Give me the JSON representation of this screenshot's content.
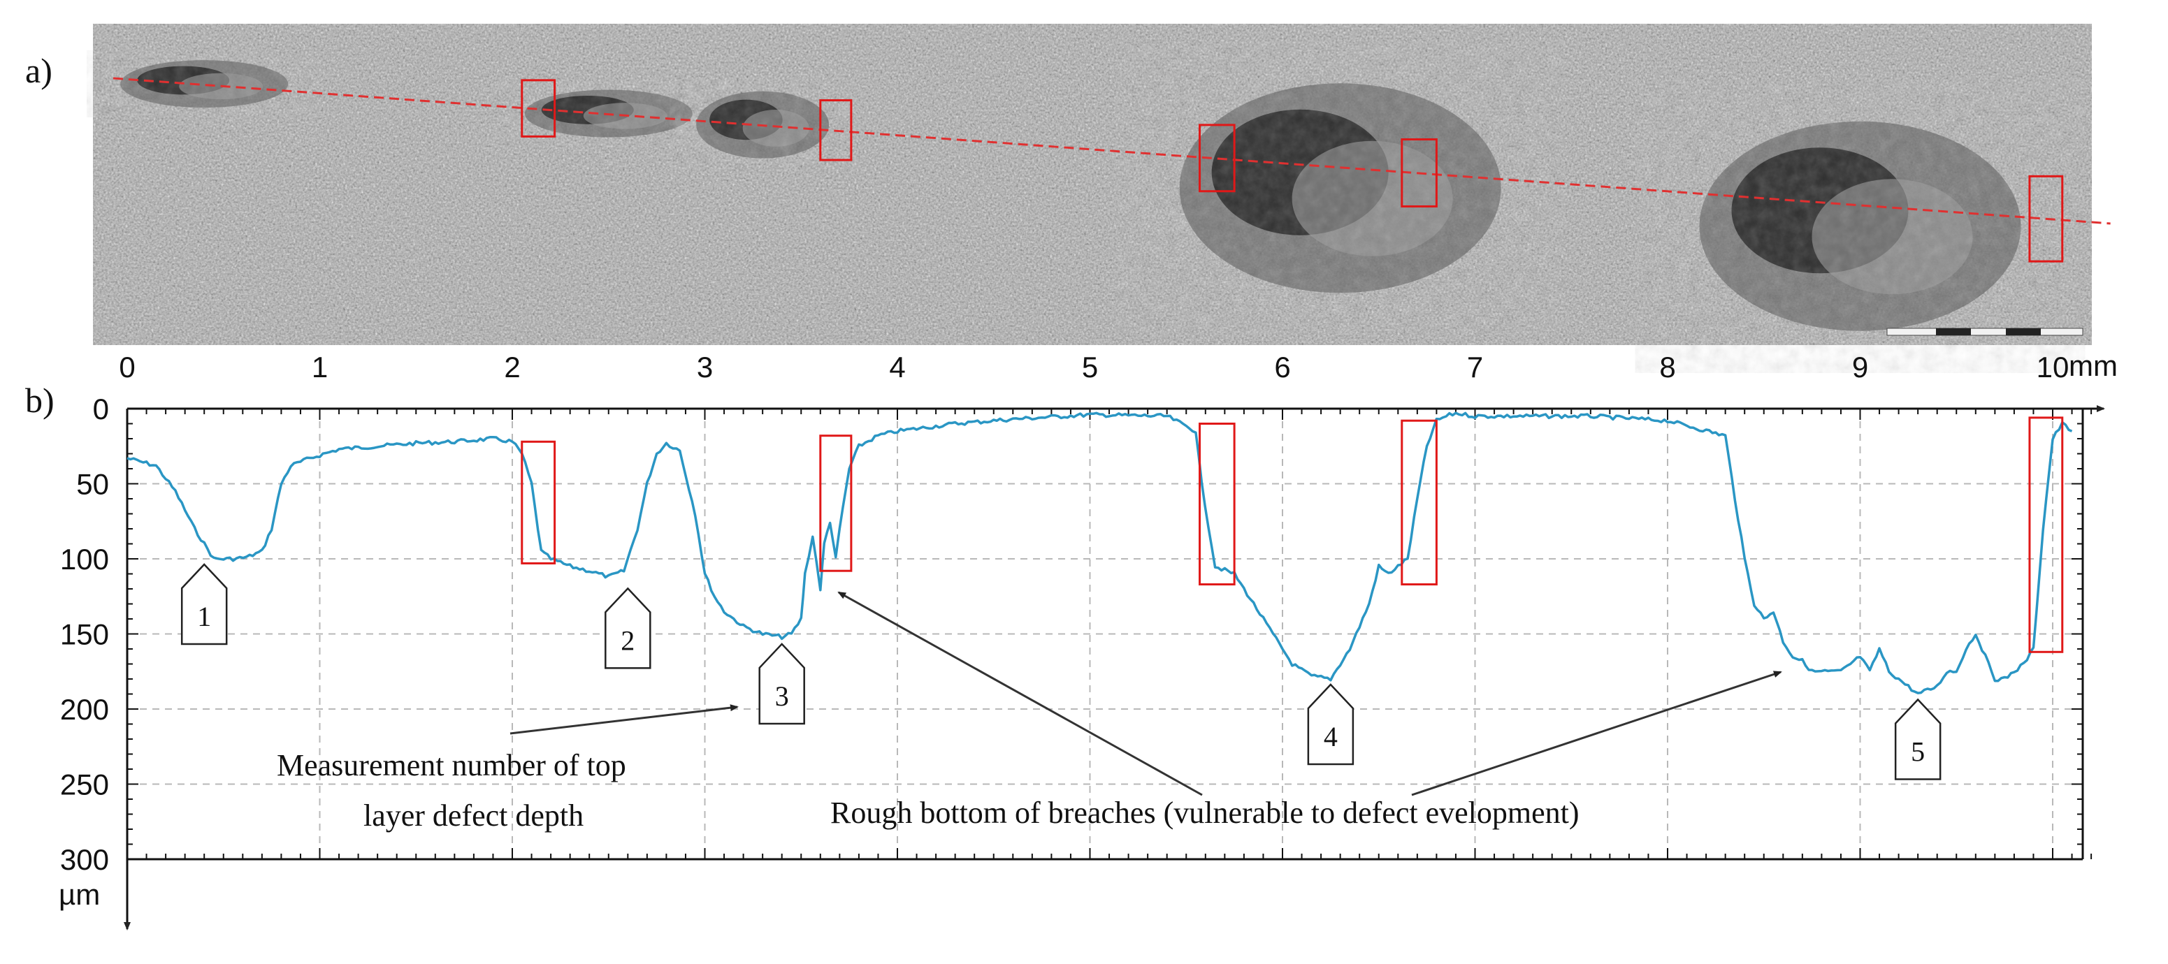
{
  "panels": {
    "a": "a)",
    "b": "b)"
  },
  "chart_data": {
    "type": "line",
    "x_unit": "mm",
    "y_unit": "µm",
    "xlim": [
      0,
      10.3
    ],
    "ylim": [
      300,
      0
    ],
    "y_inverted": true,
    "grid": true,
    "x_ticks": [
      "0",
      "1",
      "2",
      "3",
      "4",
      "5",
      "6",
      "7",
      "8",
      "9",
      "10"
    ],
    "y_ticks": [
      "0",
      "50",
      "100",
      "150",
      "200",
      "250",
      "300"
    ],
    "series": [
      {
        "color": "#2a96c4",
        "x": [
          0.0,
          0.15,
          0.25,
          0.35,
          0.45,
          0.55,
          0.62,
          0.7,
          0.75,
          0.8,
          0.85,
          0.95,
          1.1,
          1.3,
          1.5,
          1.7,
          1.9,
          2.0,
          2.05,
          2.1,
          2.15,
          2.2,
          2.3,
          2.4,
          2.5,
          2.58,
          2.65,
          2.7,
          2.75,
          2.8,
          2.87,
          2.95,
          3.0,
          3.05,
          3.1,
          3.2,
          3.3,
          3.4,
          3.45,
          3.5,
          3.52,
          3.56,
          3.6,
          3.62,
          3.65,
          3.68,
          3.7,
          3.75,
          3.8,
          3.9,
          4.0,
          4.3,
          4.6,
          5.0,
          5.4,
          5.55,
          5.58,
          5.65,
          5.75,
          5.85,
          5.95,
          6.05,
          6.15,
          6.25,
          6.35,
          6.45,
          6.5,
          6.55,
          6.6,
          6.65,
          6.7,
          6.75,
          6.8,
          6.85,
          6.9,
          7.0,
          7.3,
          7.6,
          8.0,
          8.3,
          8.35,
          8.4,
          8.45,
          8.5,
          8.55,
          8.6,
          8.65,
          8.7,
          8.75,
          8.8,
          8.9,
          9.0,
          9.05,
          9.1,
          9.15,
          9.2,
          9.3,
          9.4,
          9.45,
          9.5,
          9.55,
          9.6,
          9.65,
          9.7,
          9.75,
          9.85,
          9.9,
          9.95,
          10.0,
          10.05,
          10.1
        ],
        "y": [
          33,
          38,
          55,
          80,
          100,
          100,
          99,
          95,
          80,
          50,
          38,
          33,
          27,
          25,
          23,
          22,
          20,
          22,
          30,
          50,
          95,
          100,
          105,
          108,
          112,
          108,
          80,
          50,
          30,
          23,
          28,
          70,
          110,
          125,
          135,
          145,
          150,
          152,
          150,
          140,
          110,
          85,
          120,
          90,
          75,
          100,
          80,
          40,
          25,
          18,
          15,
          10,
          7,
          4,
          5,
          15,
          50,
          105,
          110,
          130,
          150,
          170,
          178,
          180,
          160,
          130,
          105,
          110,
          105,
          100,
          60,
          25,
          8,
          5,
          3,
          5,
          5,
          5,
          8,
          18,
          60,
          100,
          130,
          140,
          135,
          155,
          165,
          168,
          175,
          175,
          175,
          165,
          175,
          160,
          175,
          180,
          190,
          185,
          175,
          175,
          160,
          150,
          165,
          180,
          180,
          170,
          160,
          80,
          20,
          10,
          15
        ]
      }
    ],
    "callouts": [
      {
        "label": "1",
        "x": 0.4,
        "y": 100
      },
      {
        "label": "2",
        "x": 2.6,
        "y": 116
      },
      {
        "label": "3",
        "x": 3.4,
        "y": 153
      },
      {
        "label": "4",
        "x": 6.25,
        "y": 180
      },
      {
        "label": "5",
        "x": 9.3,
        "y": 190
      }
    ],
    "highlight_boxes": [
      {
        "x0": 2.05,
        "x1": 2.22,
        "y0": 22,
        "y1": 103
      },
      {
        "x0": 3.6,
        "x1": 3.76,
        "y0": 18,
        "y1": 108
      },
      {
        "x0": 5.57,
        "x1": 5.75,
        "y0": 10,
        "y1": 117
      },
      {
        "x0": 6.62,
        "x1": 6.8,
        "y0": 8,
        "y1": 117
      },
      {
        "x0": 9.88,
        "x1": 10.05,
        "y0": 6,
        "y1": 162
      }
    ],
    "annotations": {
      "measurement_line1": "Measurement number of top",
      "measurement_line2": "layer defect depth",
      "rough_bottom": "Rough bottom of breaches (vulnerable to defect evelopment)"
    }
  },
  "micrograph": {
    "profile_line_color": "#e03030",
    "highlight_color": "#e01818",
    "defects": [
      {
        "x": 0.4,
        "depth": "small"
      },
      {
        "x": 2.5,
        "depth": "small"
      },
      {
        "x": 3.3,
        "depth": "medium"
      },
      {
        "x": 6.3,
        "depth": "large"
      },
      {
        "x": 9.0,
        "depth": "large"
      }
    ]
  },
  "colors": {
    "profile": "#2a96c4",
    "highlight": "#e01818",
    "grid": "#b8b8b8"
  }
}
